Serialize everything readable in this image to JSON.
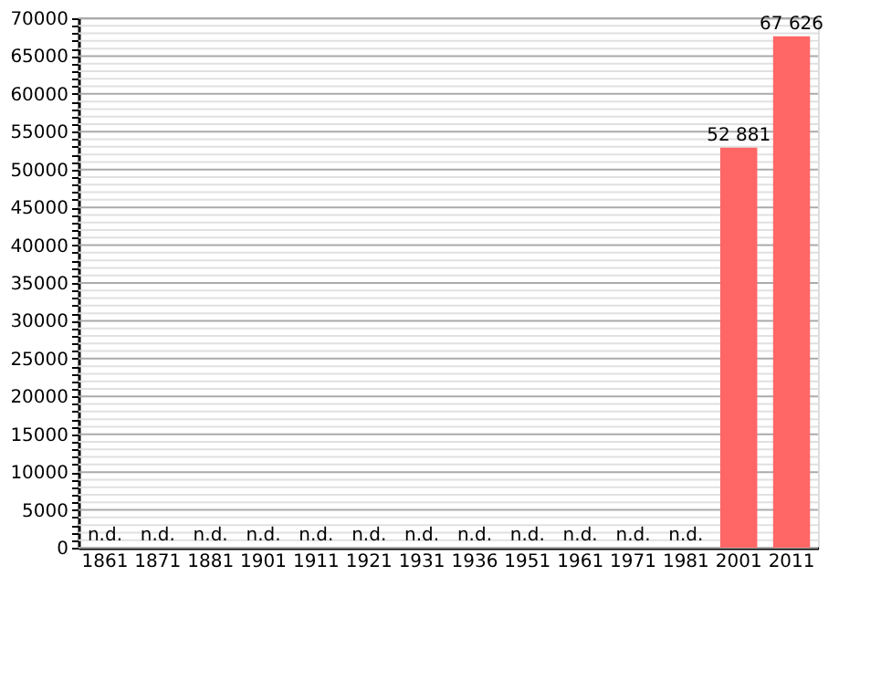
{
  "chart_data": {
    "type": "bar",
    "categories": [
      "1861",
      "1871",
      "1881",
      "1901",
      "1911",
      "1921",
      "1931",
      "1936",
      "1951",
      "1961",
      "1971",
      "1981",
      "2001",
      "2011"
    ],
    "values": [
      null,
      null,
      null,
      null,
      null,
      null,
      null,
      null,
      null,
      null,
      null,
      null,
      52881,
      67626
    ],
    "value_labels": [
      "n.d.",
      "n.d.",
      "n.d.",
      "n.d.",
      "n.d.",
      "n.d.",
      "n.d.",
      "n.d.",
      "n.d.",
      "n.d.",
      "n.d.",
      "n.d.",
      "52 881",
      "67 626"
    ],
    "color": "#ff6666",
    "ylim": [
      0,
      70000
    ],
    "yticks": [
      0,
      {
        "value": 1000,
        "label": null
      },
      {
        "value": 2000,
        "label": null
      },
      {
        "value": 3000,
        "label": null
      },
      {
        "value": 4000,
        "label": null
      },
      5000,
      {
        "value": 6000,
        "label": null
      },
      {
        "value": 7000,
        "label": null
      },
      {
        "value": 8000,
        "label": null
      },
      {
        "value": 9000,
        "label": null
      },
      10000,
      {
        "value": 11000,
        "label": null
      },
      {
        "value": 12000,
        "label": null
      },
      {
        "value": 13000,
        "label": null
      },
      {
        "value": 14000,
        "label": null
      },
      15000,
      {
        "value": 16000,
        "label": null
      },
      {
        "value": 17000,
        "label": null
      },
      {
        "value": 18000,
        "label": null
      },
      {
        "value": 19000,
        "label": null
      },
      20000,
      {
        "value": 21000,
        "label": null
      },
      {
        "value": 22000,
        "label": null
      },
      {
        "value": 23000,
        "label": null
      },
      {
        "value": 24000,
        "label": null
      },
      25000,
      {
        "value": 26000,
        "label": null
      },
      {
        "value": 27000,
        "label": null
      },
      {
        "value": 28000,
        "label": null
      },
      {
        "value": 29000,
        "label": null
      },
      30000,
      {
        "value": 31000,
        "label": null
      },
      {
        "value": 32000,
        "label": null
      },
      {
        "value": 33000,
        "label": null
      },
      {
        "value": 34000,
        "label": null
      },
      35000,
      {
        "value": 36000,
        "label": null
      },
      {
        "value": 37000,
        "label": null
      },
      {
        "value": 38000,
        "label": null
      },
      {
        "value": 39000,
        "label": null
      },
      40000,
      {
        "value": 41000,
        "label": null
      },
      {
        "value": 42000,
        "label": null
      },
      {
        "value": 43000,
        "label": null
      },
      {
        "value": 44000,
        "label": null
      },
      45000,
      {
        "value": 46000,
        "label": null
      },
      {
        "value": 47000,
        "label": null
      },
      {
        "value": 48000,
        "label": null
      },
      {
        "value": 49000,
        "label": null
      },
      50000,
      {
        "value": 51000,
        "label": null
      },
      {
        "value": 52000,
        "label": null
      },
      {
        "value": 53000,
        "label": null
      },
      {
        "value": 54000,
        "label": null
      },
      55000,
      {
        "value": 56000,
        "label": null
      },
      {
        "value": 57000,
        "label": null
      },
      {
        "value": 58000,
        "label": null
      },
      {
        "value": 59000,
        "label": null
      },
      60000,
      {
        "value": 61000,
        "label": null
      },
      {
        "value": 62000,
        "label": null
      },
      {
        "value": 63000,
        "label": null
      },
      {
        "value": 64000,
        "label": null
      },
      65000,
      {
        "value": 66000,
        "label": null
      },
      {
        "value": 67000,
        "label": null
      },
      {
        "value": 68000,
        "label": null
      },
      {
        "value": 69000,
        "label": null
      },
      70000
    ],
    "grid": true
  }
}
